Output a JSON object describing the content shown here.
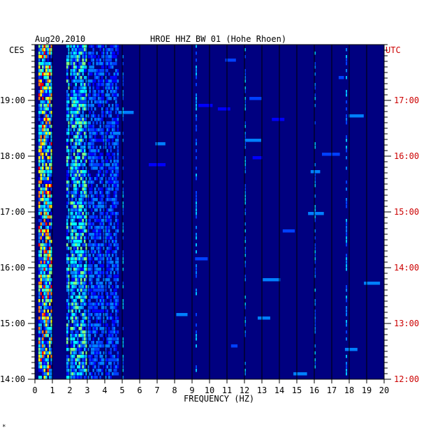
{
  "header": {
    "date": "Aug20,2010",
    "station": "HROE HHZ BW 01 (Hohe Rhoen)",
    "left_tz": "CES",
    "right_tz": "UTC"
  },
  "footer": {
    "mark": "*"
  },
  "chart_data": {
    "type": "heatmap",
    "title": "HROE HHZ BW 01 (Hohe Rhoen)",
    "date": "Aug20,2010",
    "xlabel": "FREQUENCY (HZ)",
    "xlim": [
      0,
      20
    ],
    "x_ticks": [
      "0",
      "1",
      "2",
      "3",
      "4",
      "5",
      "6",
      "7",
      "8",
      "9",
      "10",
      "11",
      "12",
      "13",
      "14",
      "15",
      "16",
      "17",
      "18",
      "19",
      "20"
    ],
    "y_left_label": "CES",
    "y_right_label": "UTC",
    "y_left_ticks": [
      "19:00",
      "18:00",
      "17:00",
      "16:00",
      "15:00",
      "14:00"
    ],
    "y_right_ticks": [
      "17:00",
      "16:00",
      "15:00",
      "14:00",
      "13:00",
      "12:00"
    ],
    "time_range_ces": [
      "14:00",
      "19:45"
    ],
    "grid": "vertical lines at each 1 Hz",
    "colors": {
      "background": "#000080",
      "low": "#0000ff",
      "mid": "#00ffff",
      "high": "#ffff00",
      "peak": "#ff0000"
    },
    "energy_bands_hz": [
      {
        "from": 0.2,
        "to": 1.0,
        "level": "high"
      },
      {
        "from": 1.8,
        "to": 3.0,
        "level": "medium"
      },
      {
        "from": 3.0,
        "to": 4.8,
        "level": "low"
      }
    ],
    "tonal_lines_hz": [
      5,
      9.2,
      12.0,
      16.0,
      17.8
    ]
  }
}
